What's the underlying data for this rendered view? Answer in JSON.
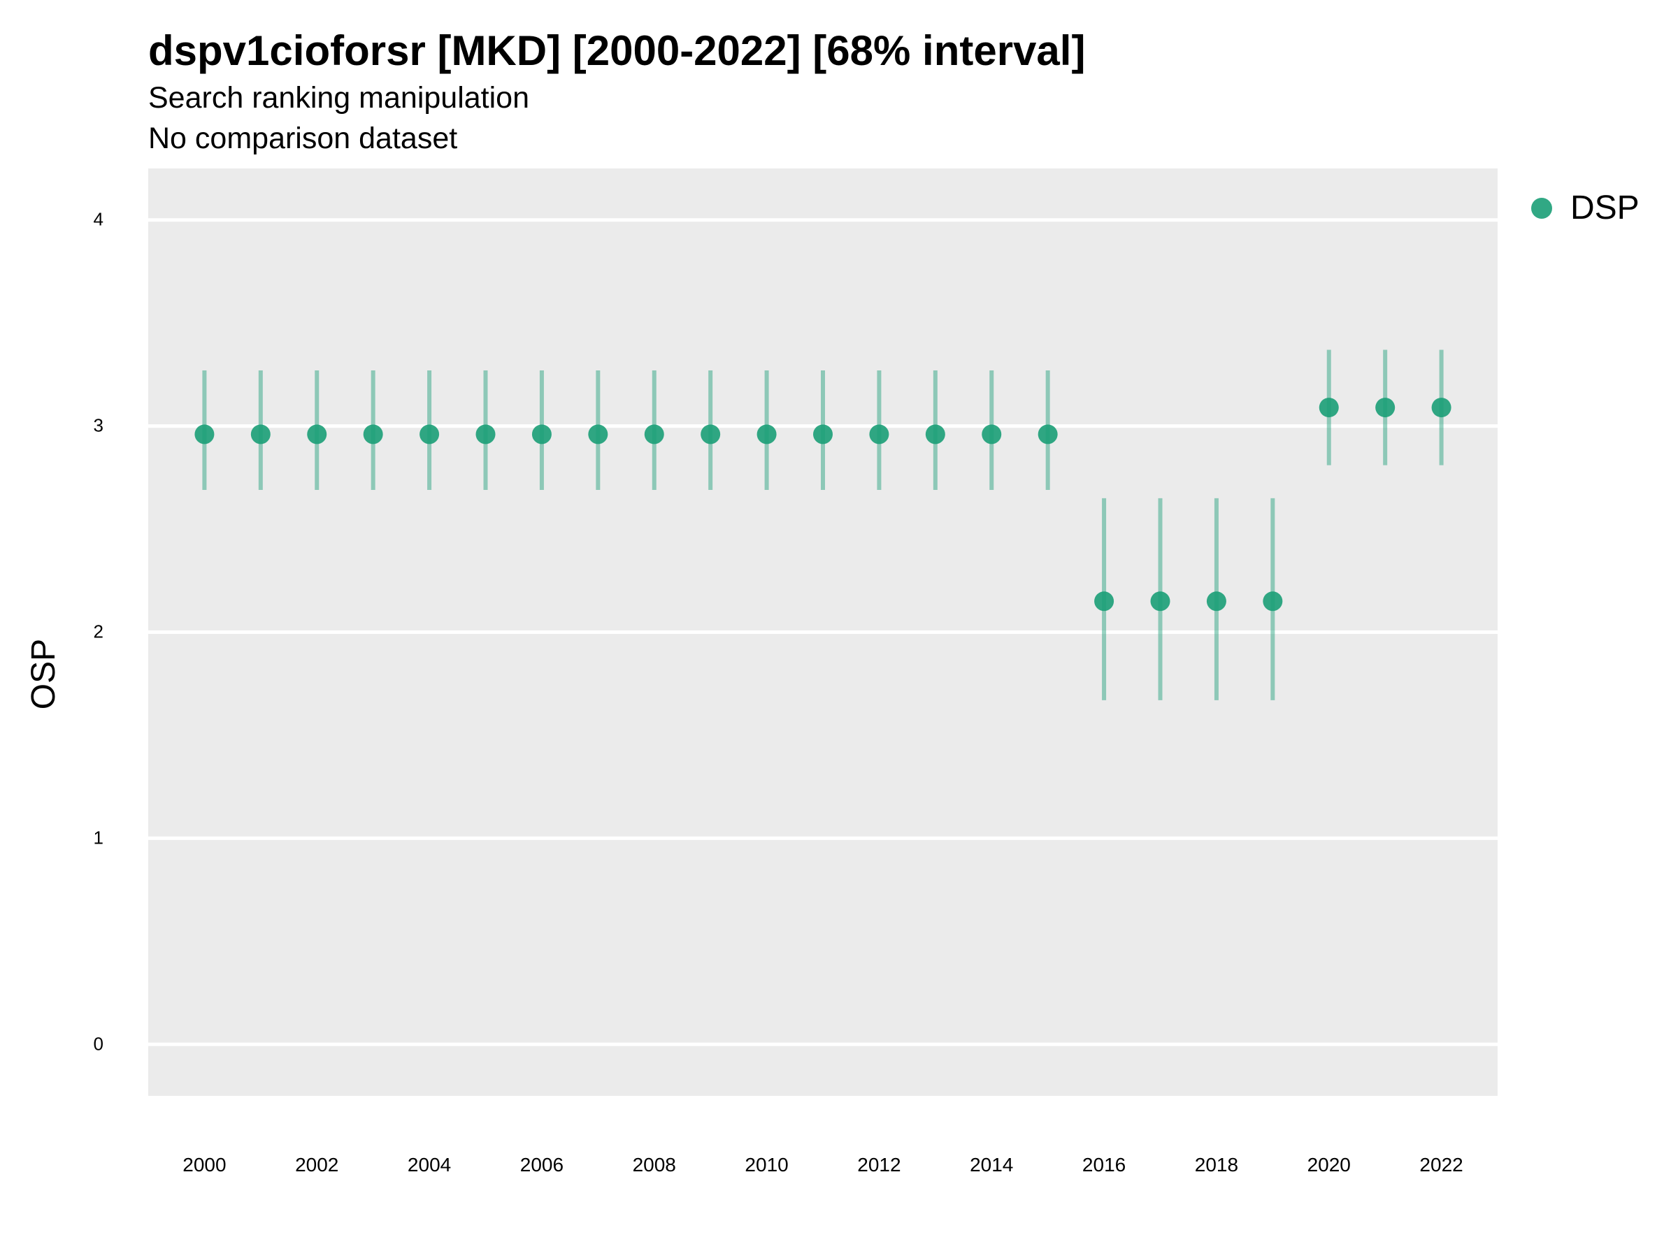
{
  "title": "dspv1cioforsr [MKD] [2000-2022] [68% interval]",
  "subtitle_lines": [
    "Search ranking manipulation",
    "No comparison dataset"
  ],
  "chart_data": {
    "type": "scatter",
    "title": "dspv1cioforsr [MKD] [2000-2022] [68% interval]",
    "subtitle": "Search ranking manipulation\nNo comparison dataset",
    "xlabel": "",
    "ylabel": "OSP",
    "x": [
      2000,
      2001,
      2002,
      2003,
      2004,
      2005,
      2006,
      2007,
      2008,
      2009,
      2010,
      2011,
      2012,
      2013,
      2014,
      2015,
      2016,
      2017,
      2018,
      2019,
      2020,
      2021,
      2022
    ],
    "series": [
      {
        "name": "DSP",
        "color": "#1b9e77",
        "values": [
          2.96,
          2.96,
          2.96,
          2.96,
          2.96,
          2.96,
          2.96,
          2.96,
          2.96,
          2.96,
          2.96,
          2.96,
          2.96,
          2.96,
          2.96,
          2.96,
          2.15,
          2.15,
          2.15,
          2.15,
          3.09,
          3.09,
          3.09
        ],
        "lower": [
          2.69,
          2.69,
          2.69,
          2.69,
          2.69,
          2.69,
          2.69,
          2.69,
          2.69,
          2.69,
          2.69,
          2.69,
          2.69,
          2.69,
          2.69,
          2.69,
          1.67,
          1.67,
          1.67,
          1.67,
          2.81,
          2.81,
          2.81
        ],
        "upper": [
          3.27,
          3.27,
          3.27,
          3.27,
          3.27,
          3.27,
          3.27,
          3.27,
          3.27,
          3.27,
          3.27,
          3.27,
          3.27,
          3.27,
          3.27,
          3.27,
          2.65,
          2.65,
          2.65,
          2.65,
          3.37,
          3.37,
          3.37
        ]
      }
    ],
    "xticks": [
      "2000",
      "2002",
      "2004",
      "2006",
      "2008",
      "2010",
      "2012",
      "2014",
      "2016",
      "2018",
      "2020",
      "2022"
    ],
    "yticks": [
      "0",
      "1",
      "2",
      "3",
      "4"
    ],
    "xlim": [
      1999,
      2023
    ],
    "ylim": [
      -0.25,
      4.25
    ],
    "grid": "horizontal major only",
    "legend": {
      "position": "right-top",
      "entries": [
        "DSP"
      ]
    }
  }
}
